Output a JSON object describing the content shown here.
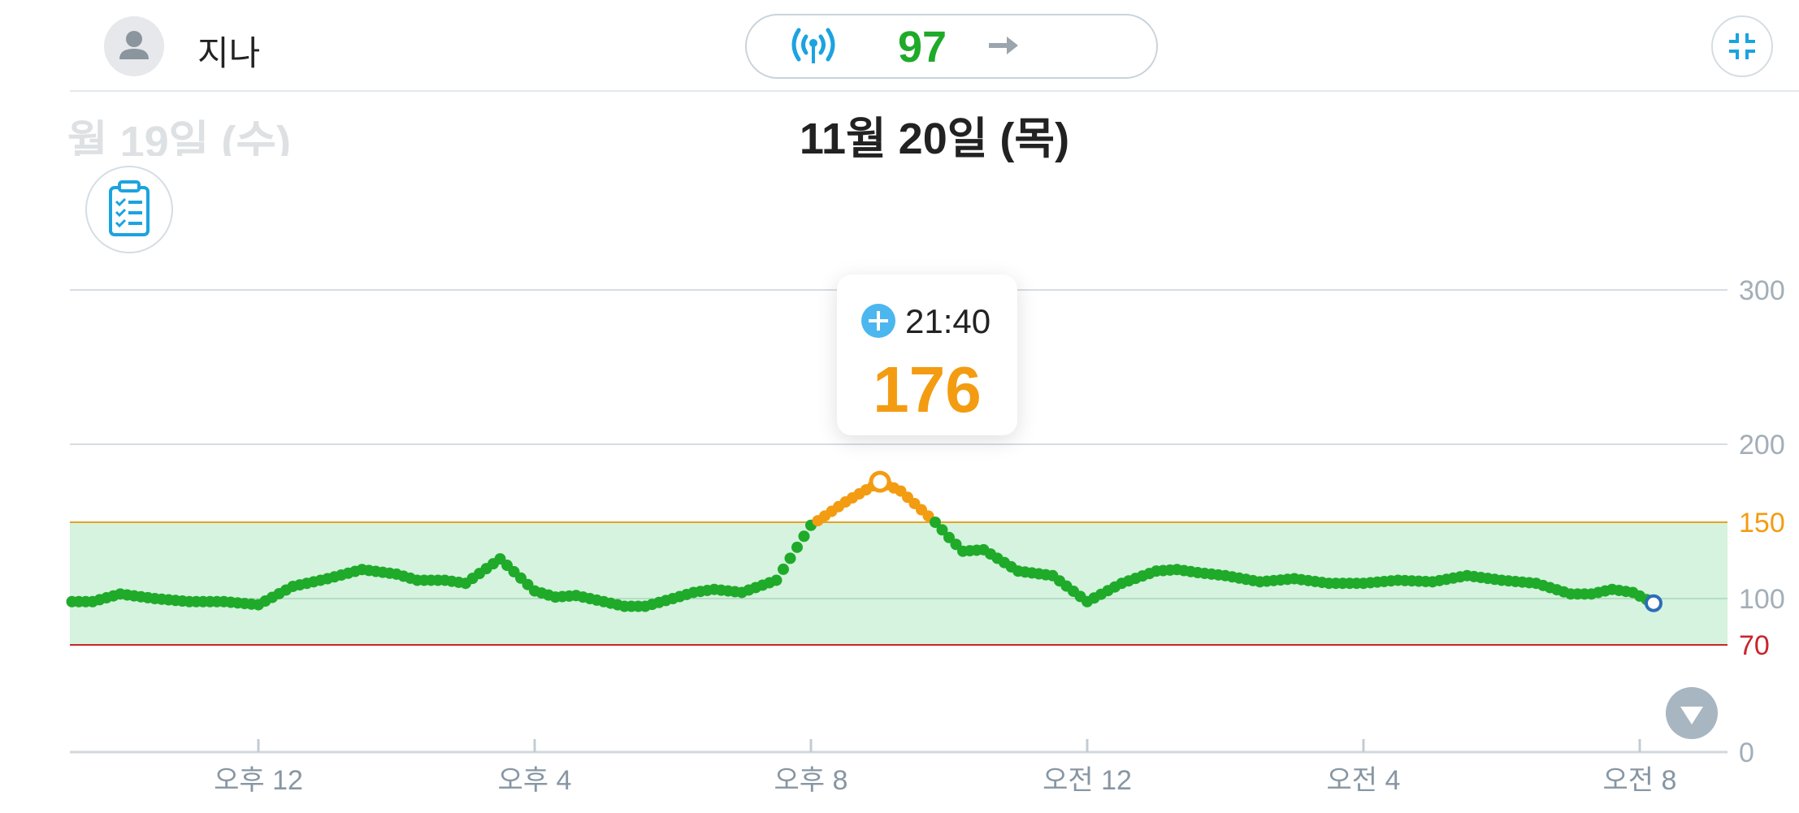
{
  "header": {
    "user_name": "지나",
    "current_glucose": "97",
    "signal_icon": "signal-icon",
    "trend_icon": "arrow-right-icon",
    "collapse_icon": "collapse-icon"
  },
  "dates": {
    "previous": "월 19일 (수)",
    "current": "11월 20일 (목)"
  },
  "tooltip": {
    "time": "21:40",
    "value": "176"
  },
  "colors": {
    "in_range": "#1faa2a",
    "high": "#f39c12",
    "high_line": "#e3a420",
    "low_line": "#c9252b",
    "target_band": "#d5f3de",
    "accent_icon": "#1ba3e0"
  },
  "chart_data": {
    "type": "line",
    "x_ticks": [
      "오후 12",
      "오후 4",
      "오후 8",
      "오전 12",
      "오전 4",
      "오전 8"
    ],
    "y_ticks": [
      0,
      70,
      100,
      150,
      200,
      300
    ],
    "ylim": [
      0,
      300
    ],
    "target_range": [
      70,
      150
    ],
    "high_threshold": 150,
    "low_threshold": 70,
    "x_unit": "hours",
    "series": [
      {
        "x": [
          9.3,
          9.6,
          10.0,
          10.5,
          11.0,
          11.5,
          12.0,
          12.5,
          13.0,
          13.5,
          14.0,
          14.3,
          14.7,
          15.0,
          15.5,
          16.0,
          16.3,
          16.6,
          17.0,
          17.3,
          17.6,
          18.0,
          18.3,
          18.6,
          19.0,
          19.5,
          20.0,
          20.5,
          21.0,
          21.3,
          21.6,
          21.8,
          22.0,
          22.2,
          22.5,
          23.0,
          23.5,
          24.0,
          24.5,
          25.0,
          25.3,
          25.6,
          26.0,
          26.5,
          27.0,
          27.5,
          28.0,
          28.5,
          29.0,
          29.5,
          30.0,
          30.5,
          31.0,
          31.3,
          31.6,
          31.9,
          32.2
        ],
        "y": [
          98,
          98,
          103,
          100,
          98,
          98,
          96,
          108,
          113,
          119,
          116,
          112,
          112,
          110,
          126,
          105,
          101,
          102,
          98,
          95,
          95,
          100,
          104,
          106,
          104,
          112,
          148,
          163,
          176,
          170,
          158,
          150,
          140,
          131,
          132,
          118,
          115,
          98,
          110,
          118,
          119,
          117,
          115,
          111,
          113,
          110,
          110,
          112,
          111,
          115,
          112,
          110,
          103,
          103,
          106,
          104,
          97
        ]
      }
    ]
  }
}
